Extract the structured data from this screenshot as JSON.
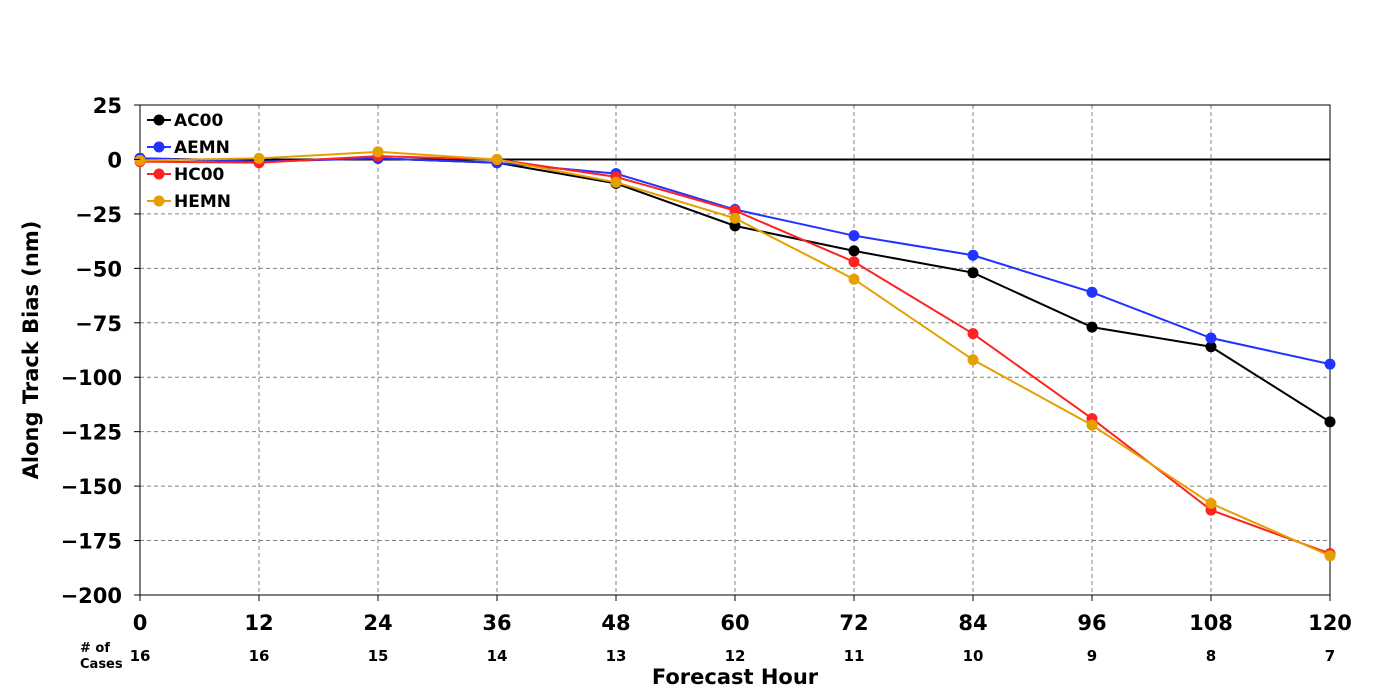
{
  "chart_data": {
    "type": "line",
    "xlabel": "Forecast Hour",
    "ylabel": "Along Track Bias (nm)",
    "x": [
      0,
      12,
      24,
      36,
      48,
      60,
      72,
      84,
      96,
      108,
      120
    ],
    "x_ticks": [
      "0",
      "12",
      "24",
      "36",
      "48",
      "60",
      "72",
      "84",
      "96",
      "108",
      "120"
    ],
    "y_ticks": [
      25,
      0,
      -25,
      -50,
      -75,
      -100,
      -125,
      -150,
      -175,
      -200
    ],
    "y_tick_labels": [
      "25",
      "0",
      "−25",
      "−50",
      "−75",
      "−100",
      "−125",
      "−150",
      "−175",
      "−200"
    ],
    "xlim": [
      0,
      120
    ],
    "ylim": [
      -200,
      25
    ],
    "grid": true,
    "legend_position": "top-left",
    "zero_line": true,
    "cases_title": [
      "# of",
      "Cases"
    ],
    "cases": [
      "16",
      "16",
      "15",
      "14",
      "13",
      "12",
      "11",
      "10",
      "9",
      "8",
      "7"
    ],
    "series": [
      {
        "name": "AC00",
        "color": "#000000",
        "values": [
          0.5,
          -0.5,
          0.5,
          -1.5,
          -11,
          -30.5,
          -42,
          -52,
          -77,
          -86,
          -120.5
        ]
      },
      {
        "name": "AEMN",
        "color": "#2233ff",
        "values": [
          0.5,
          -1,
          0.5,
          -1.5,
          -6.5,
          -23,
          -35,
          -44,
          -61,
          -82,
          -94
        ]
      },
      {
        "name": "HC00",
        "color": "#ff2222",
        "values": [
          -1,
          -1.5,
          1.5,
          0,
          -8,
          -23.5,
          -47,
          -80,
          -119,
          -161,
          -181
        ]
      },
      {
        "name": "HEMN",
        "color": "#e69f00",
        "values": [
          -0.5,
          0.5,
          3.5,
          0,
          -10.5,
          -27,
          -55,
          -92,
          -122,
          -158,
          -182
        ]
      }
    ]
  }
}
